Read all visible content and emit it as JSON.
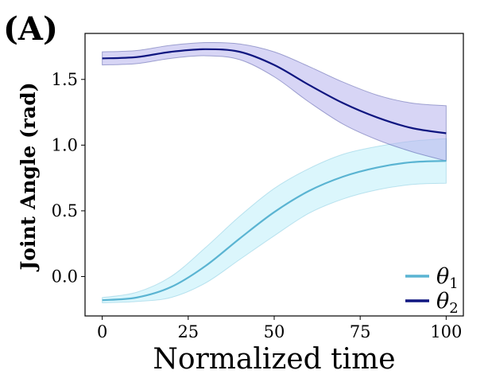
{
  "panel_label": "(A)",
  "chart_data": {
    "type": "line",
    "title": "",
    "xlabel": "Normalized time",
    "ylabel": "Joint Angle (rad)",
    "xlim": [
      -5,
      105
    ],
    "ylim": [
      -0.3,
      1.85
    ],
    "x_ticks": [
      0,
      25,
      50,
      75,
      100
    ],
    "x_tick_labels": [
      "0",
      "25",
      "50",
      "75",
      "100"
    ],
    "y_ticks": [
      0.0,
      0.5,
      1.0,
      1.5
    ],
    "y_tick_labels": [
      "0.0",
      "0.5",
      "1.0",
      "1.5"
    ],
    "grid": false,
    "legend_position": "bottom-right",
    "x": [
      0,
      10,
      20,
      30,
      40,
      50,
      60,
      70,
      80,
      90,
      100
    ],
    "series": [
      {
        "name": "θ1",
        "legend_symbol": "θ",
        "legend_subscript": "1",
        "color": "#5ab4d2",
        "band_color": "#bdeefa",
        "values": [
          -0.18,
          -0.16,
          -0.08,
          0.08,
          0.29,
          0.49,
          0.65,
          0.76,
          0.83,
          0.87,
          0.88
        ],
        "upper": [
          -0.16,
          -0.12,
          0.0,
          0.22,
          0.46,
          0.67,
          0.82,
          0.93,
          0.99,
          1.03,
          1.05
        ],
        "lower": [
          -0.2,
          -0.19,
          -0.16,
          -0.05,
          0.13,
          0.31,
          0.48,
          0.59,
          0.66,
          0.7,
          0.71
        ]
      },
      {
        "name": "θ2",
        "legend_symbol": "θ",
        "legend_subscript": "2",
        "color": "#0f1680",
        "band_color": "#b7b3ec",
        "values": [
          1.66,
          1.67,
          1.71,
          1.73,
          1.71,
          1.61,
          1.46,
          1.32,
          1.21,
          1.13,
          1.09
        ],
        "upper": [
          1.71,
          1.72,
          1.76,
          1.78,
          1.77,
          1.71,
          1.6,
          1.48,
          1.38,
          1.32,
          1.3
        ],
        "lower": [
          1.61,
          1.62,
          1.66,
          1.68,
          1.65,
          1.52,
          1.33,
          1.16,
          1.04,
          0.95,
          0.88
        ]
      }
    ]
  }
}
